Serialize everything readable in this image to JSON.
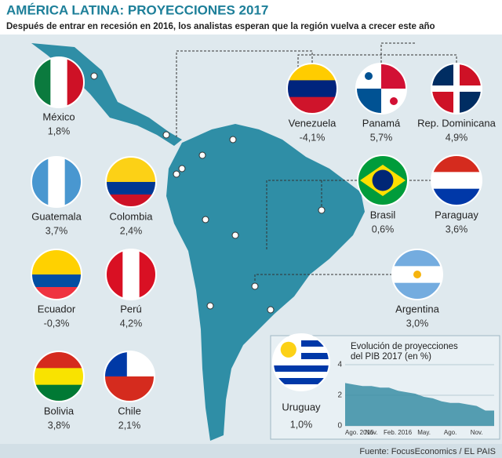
{
  "header": {
    "title": "AMÉRICA LATINA: PROYECCIONES 2017",
    "subtitle": "Después de entrar en recesión en 2016, los analistas esperan que la región vuelva a crecer este año"
  },
  "countries": [
    {
      "name": "México",
      "value": 1.8,
      "value_label": "1,8%"
    },
    {
      "name": "Guatemala",
      "value": 3.7,
      "value_label": "3,7%"
    },
    {
      "name": "Colombia",
      "value": 2.4,
      "value_label": "2,4%"
    },
    {
      "name": "Ecuador",
      "value": -0.3,
      "value_label": "-0,3%"
    },
    {
      "name": "Perú",
      "value": 4.2,
      "value_label": "4,2%"
    },
    {
      "name": "Bolivia",
      "value": 3.8,
      "value_label": "3,8%"
    },
    {
      "name": "Chile",
      "value": 2.1,
      "value_label": "2,1%"
    },
    {
      "name": "Venezuela",
      "value": -4.1,
      "value_label": "-4,1%"
    },
    {
      "name": "Panamá",
      "value": 5.7,
      "value_label": "5,7%"
    },
    {
      "name": "Rep. Dominicana",
      "value": 4.9,
      "value_label": "4,9%"
    },
    {
      "name": "Brasil",
      "value": 0.6,
      "value_label": "0,6%"
    },
    {
      "name": "Paraguay",
      "value": 3.6,
      "value_label": "3,6%"
    },
    {
      "name": "Argentina",
      "value": 3.0,
      "value_label": "3,0%"
    },
    {
      "name": "Uruguay",
      "value": 1.0,
      "value_label": "1,0%"
    }
  ],
  "chart_data": {
    "type": "area",
    "title": "Evolución de proyecciones del PIB 2017 (en %)",
    "categories": [
      "Ago. 2015",
      null,
      null,
      "Nov.",
      null,
      null,
      "Feb. 2016",
      null,
      null,
      "May.",
      null,
      null,
      "Ago.",
      null,
      null,
      "Nov.",
      null,
      null
    ],
    "values": [
      2.8,
      2.7,
      2.6,
      2.6,
      2.5,
      2.5,
      2.3,
      2.2,
      2.1,
      1.9,
      1.8,
      1.6,
      1.5,
      1.5,
      1.4,
      1.3,
      1.0,
      1.0
    ],
    "color": "#3a8ea5",
    "ylim": [
      0,
      4
    ],
    "yticks": [
      0,
      2,
      4
    ]
  },
  "source": "Fuente: FocusEconomics / EL PAIS"
}
